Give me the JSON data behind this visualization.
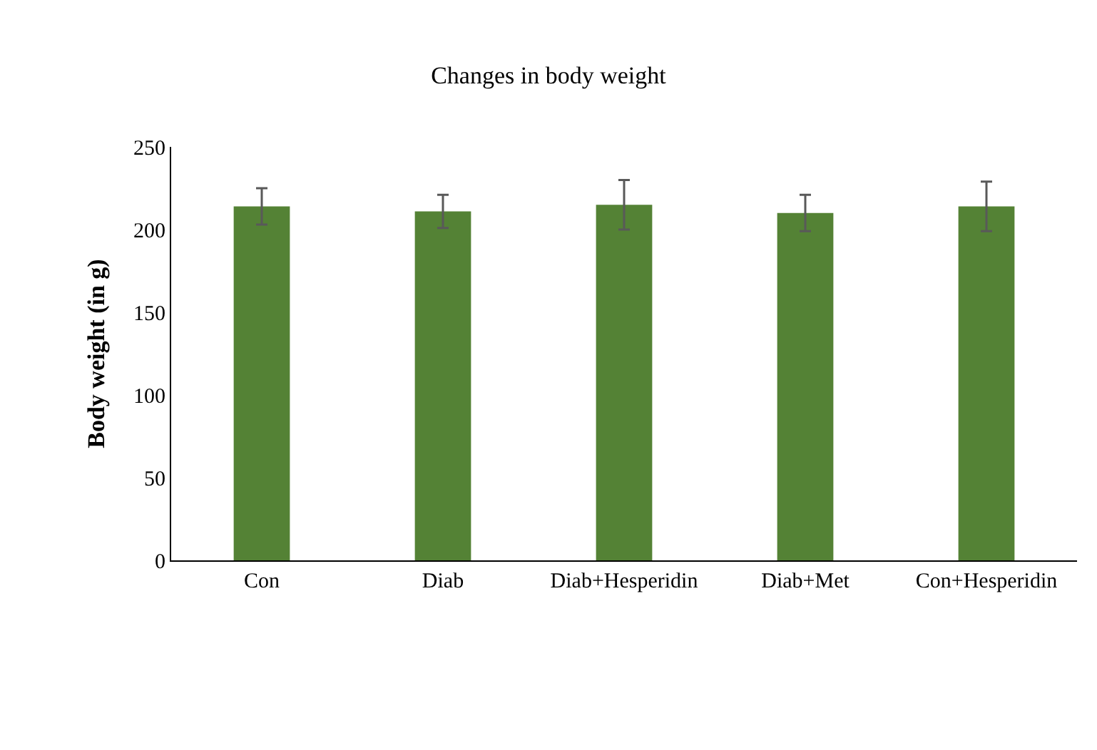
{
  "chart_data": {
    "type": "bar",
    "title": "Changes in body weight",
    "ylabel": "Body weight (in g)",
    "categories": [
      "Con",
      "Diab",
      "Diab+Hesperidin",
      "Diab+Met",
      "Con+Hesperidin"
    ],
    "values": [
      214,
      211,
      215,
      210,
      214
    ],
    "errors": [
      11,
      10,
      15,
      11,
      15
    ],
    "color": "#548235",
    "ylim": [
      0,
      250
    ],
    "yticks": [
      0,
      50,
      100,
      150,
      200,
      250
    ],
    "grid": false
  }
}
